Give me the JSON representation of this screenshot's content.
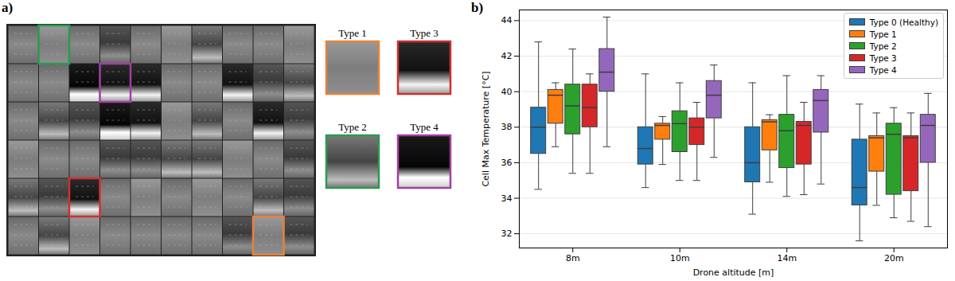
{
  "image": {
    "label": "a)",
    "regions": [
      {
        "label": "Type 1",
        "color": "#e8823a"
      },
      {
        "label": "Type 3",
        "color": "#d03030"
      },
      {
        "label": "Type 2",
        "color": "#2a9a50"
      },
      {
        "label": "Type 4",
        "color": "#a040a0"
      }
    ]
  },
  "chart_data": {
    "type": "box",
    "panel_label": "b)",
    "x_label": "Drone altitude [m]",
    "y_label": "Cell Max Temperature [°C]",
    "categories": [
      "8m",
      "10m",
      "14m",
      "20m"
    ],
    "series": [
      {
        "name": "Type 0 (Healthy)",
        "color": "#1f77b4",
        "boxes": [
          {
            "min": 34.5,
            "q1": 36.5,
            "median": 38.0,
            "q3": 39.1,
            "max": 42.8
          },
          {
            "min": 34.6,
            "q1": 35.9,
            "median": 36.8,
            "q3": 38.0,
            "max": 41.0
          },
          {
            "min": 33.1,
            "q1": 34.9,
            "median": 36.0,
            "q3": 38.0,
            "max": 40.5
          },
          {
            "min": 31.6,
            "q1": 33.6,
            "median": 34.6,
            "q3": 37.3,
            "max": 39.3
          }
        ]
      },
      {
        "name": "Type 1",
        "color": "#ff7f0e",
        "boxes": [
          {
            "min": 36.9,
            "q1": 38.2,
            "median": 39.8,
            "q3": 40.1,
            "max": 40.5
          },
          {
            "min": 35.9,
            "q1": 37.3,
            "median": 38.1,
            "q3": 38.2,
            "max": 38.6
          },
          {
            "min": 34.9,
            "q1": 36.7,
            "median": 38.3,
            "q3": 38.4,
            "max": 38.7
          },
          {
            "min": 33.6,
            "q1": 35.5,
            "median": 37.4,
            "q3": 37.5,
            "max": 38.8
          }
        ]
      },
      {
        "name": "Type 2",
        "color": "#2ca02c",
        "boxes": [
          {
            "min": 35.4,
            "q1": 37.6,
            "median": 39.2,
            "q3": 40.4,
            "max": 42.4
          },
          {
            "min": 35.0,
            "q1": 36.6,
            "median": 38.2,
            "q3": 38.9,
            "max": 40.5
          },
          {
            "min": 34.1,
            "q1": 35.7,
            "median": 37.8,
            "q3": 38.7,
            "max": 40.9
          },
          {
            "min": 32.9,
            "q1": 34.2,
            "median": 37.6,
            "q3": 38.2,
            "max": 39.1
          }
        ]
      },
      {
        "name": "Type 3",
        "color": "#d62728",
        "boxes": [
          {
            "min": 35.4,
            "q1": 38.0,
            "median": 39.1,
            "q3": 40.4,
            "max": 41.0
          },
          {
            "min": 35.0,
            "q1": 37.0,
            "median": 38.0,
            "q3": 38.5,
            "max": 39.4
          },
          {
            "min": 34.2,
            "q1": 35.9,
            "median": 38.1,
            "q3": 38.3,
            "max": 39.4
          },
          {
            "min": 32.7,
            "q1": 34.4,
            "median": 37.4,
            "q3": 37.5,
            "max": 38.8
          }
        ]
      },
      {
        "name": "Type 4",
        "color": "#9467bd",
        "boxes": [
          {
            "min": 36.9,
            "q1": 40.0,
            "median": 41.1,
            "q3": 42.4,
            "max": 44.2
          },
          {
            "min": 36.3,
            "q1": 38.5,
            "median": 39.8,
            "q3": 40.6,
            "max": 41.5
          },
          {
            "min": 34.8,
            "q1": 37.7,
            "median": 39.5,
            "q3": 40.1,
            "max": 40.9
          },
          {
            "min": 32.4,
            "q1": 36.0,
            "median": 38.1,
            "q3": 38.7,
            "max": 39.9
          }
        ]
      }
    ],
    "ylim": [
      31.2,
      44.6
    ],
    "yticks": [
      32,
      34,
      36,
      38,
      40,
      42,
      44
    ],
    "grid": true,
    "legend": "upper right"
  }
}
